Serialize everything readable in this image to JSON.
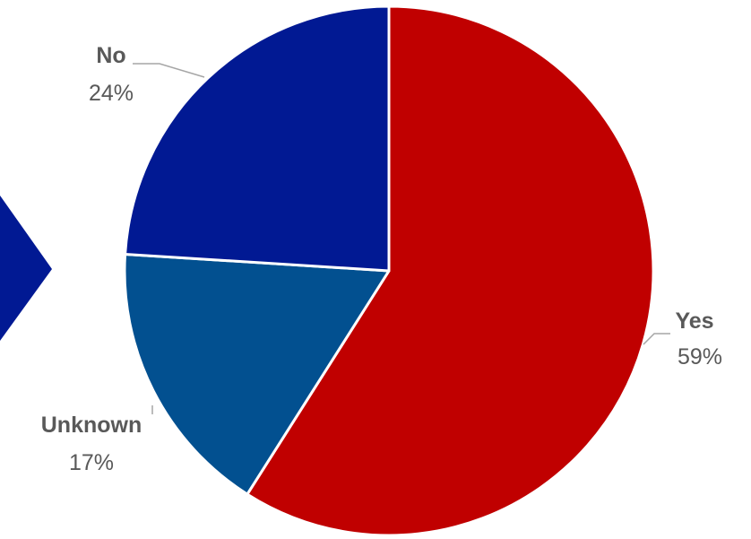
{
  "colors": {
    "background": "#ffffff",
    "label_text": "#595959",
    "leader_line": "#a6a6a6",
    "slice_border": "#ffffff",
    "arrow": "#011993"
  },
  "chart_data": {
    "type": "pie",
    "title": "",
    "slices": [
      {
        "label": "Yes",
        "value_label": "59%",
        "value": 59,
        "color": "#c00000"
      },
      {
        "label": "Unknown",
        "value_label": "17%",
        "value": 17,
        "color": "#025090"
      },
      {
        "label": "No",
        "value_label": "24%",
        "value": 24,
        "color": "#011993"
      }
    ],
    "start": "12 o'clock",
    "direction": "clockwise",
    "legend": "none",
    "data_labels": "outside with leader lines"
  },
  "decor": {
    "left_arrow": {
      "icon": "arrow-right-chevron-icon",
      "color": "#011993"
    }
  }
}
